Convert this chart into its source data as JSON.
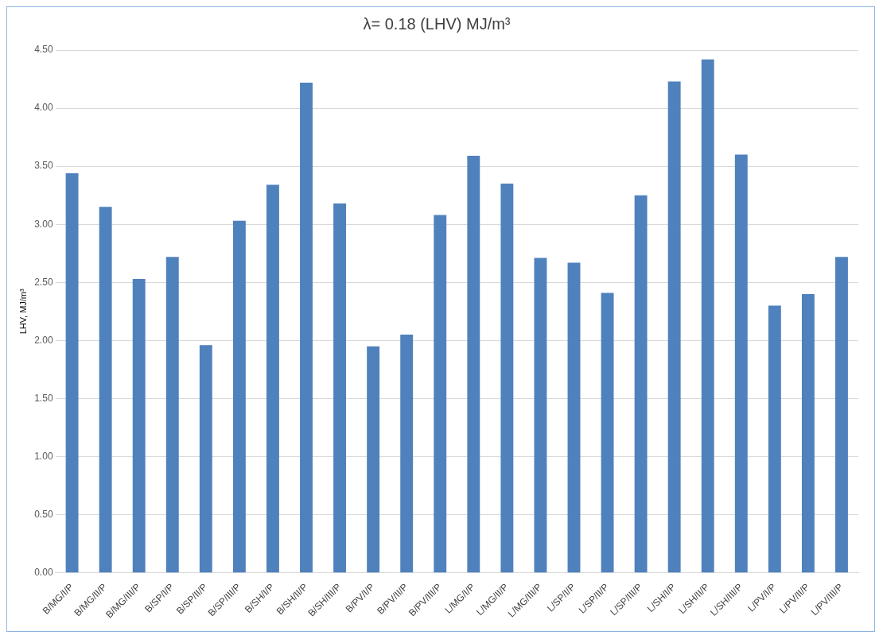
{
  "chart_data": {
    "type": "bar",
    "title": "λ= 0.18 (LHV) MJ/m³",
    "ylabel": "LHV, MJ/m³",
    "categories": [
      "B/MG/I/P",
      "B/MG/II/P",
      "B/MG/III/P",
      "B/SP/I/P",
      "B/SP/II/P",
      "B/SP/III/P",
      "B/SH/I/P",
      "B/SH/II/P",
      "B/SH/III/P",
      "B/PV/I/P",
      "B/PV/II/P",
      "B/PV/III/P",
      "L/MG/I/P",
      "L/MG/II/P",
      "L/MG/III/P",
      "L/SP/I/P",
      "L/SP/II/P",
      "L/SP/III/P",
      "L/SH/I/P",
      "L/SH/II/P",
      "L/SH/III/P",
      "L/PV/I/P",
      "L/PV/II/P",
      "L/PV/III/P"
    ],
    "values": [
      3.44,
      3.15,
      2.53,
      2.72,
      1.96,
      3.03,
      3.34,
      4.22,
      3.18,
      1.95,
      2.05,
      3.08,
      3.59,
      3.35,
      2.71,
      2.67,
      2.41,
      3.25,
      4.23,
      4.42,
      3.6,
      2.3,
      2.4,
      2.72
    ],
    "color": "#4f81bd",
    "ylim": [
      0,
      4.5
    ],
    "yticks": [
      {
        "value": 0,
        "label": "0.00"
      },
      {
        "value": 0.5,
        "label": "0.50"
      },
      {
        "value": 1,
        "label": "1.00"
      },
      {
        "value": 1.5,
        "label": "1.50"
      },
      {
        "value": 2,
        "label": "2.00"
      },
      {
        "value": 2.5,
        "label": "2.50"
      },
      {
        "value": 3,
        "label": "3.00"
      },
      {
        "value": 3.5,
        "label": "3.50"
      },
      {
        "value": 4,
        "label": "4.00"
      },
      {
        "value": 4.5,
        "label": "4.50"
      }
    ],
    "grid": "y"
  }
}
